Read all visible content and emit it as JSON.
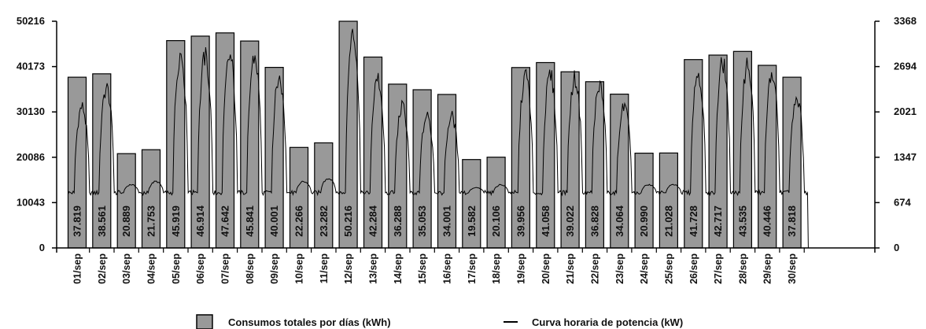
{
  "chart_data": {
    "type": "bar",
    "categories": [
      "01/sep",
      "02/sep",
      "03/sep",
      "04/sep",
      "05/sep",
      "06/sep",
      "07/sep",
      "08/sep",
      "09/sep",
      "10/sep",
      "11/sep",
      "12/sep",
      "13/sep",
      "14/sep",
      "15/sep",
      "16/sep",
      "17/sep",
      "18/sep",
      "19/sep",
      "20/sep",
      "21/sep",
      "22/sep",
      "23/sep",
      "24/sep",
      "25/sep",
      "26/sep",
      "27/sep",
      "28/sep",
      "29/sep",
      "30/sep"
    ],
    "series": [
      {
        "name": "Consumos totales por días (kWh)",
        "kind": "bar",
        "axis": "left",
        "values": [
          37819,
          38561,
          20889,
          21753,
          45919,
          46914,
          47642,
          45841,
          40001,
          22266,
          23282,
          50216,
          42284,
          36288,
          35053,
          34001,
          19582,
          20106,
          39956,
          41058,
          39022,
          36828,
          34064,
          20990,
          21028,
          41728,
          42717,
          43535,
          40446,
          37818
        ],
        "labels": [
          "37.819",
          "38.561",
          "20.889",
          "21.753",
          "45.919",
          "46.914",
          "47.642",
          "45.841",
          "40.001",
          "22.266",
          "23.282",
          "50.216",
          "42.284",
          "36.288",
          "35.053",
          "34.001",
          "19.582",
          "20.106",
          "39.956",
          "41.058",
          "39.022",
          "36.828",
          "34.064",
          "20.990",
          "21.028",
          "41.728",
          "42.717",
          "43.535",
          "40.446",
          "37.818"
        ]
      },
      {
        "name": "Curva horaria de potencia (kW)",
        "kind": "line",
        "axis": "right",
        "daily_peak": [
          2200,
          2500,
          950,
          1000,
          3050,
          3000,
          3000,
          3000,
          2650,
          1000,
          1050,
          3350,
          2650,
          2200,
          2050,
          2050,
          900,
          950,
          2700,
          2700,
          2650,
          2550,
          2200,
          950,
          950,
          2750,
          2900,
          2900,
          2700,
          2350
        ],
        "base_load": 820
      }
    ],
    "y_left": {
      "ticks": [
        "0",
        "10043",
        "20086",
        "30130",
        "40173",
        "50216"
      ],
      "range": [
        0,
        50216
      ]
    },
    "y_right": {
      "ticks": [
        "0",
        "674",
        "1347",
        "2021",
        "2694",
        "3368"
      ],
      "range": [
        0,
        3368
      ]
    },
    "legend_position": "bottom-center",
    "colors": {
      "bar_fill": "#999999",
      "bar_stroke": "#000000",
      "line": "#000000",
      "text": "#111111"
    }
  }
}
